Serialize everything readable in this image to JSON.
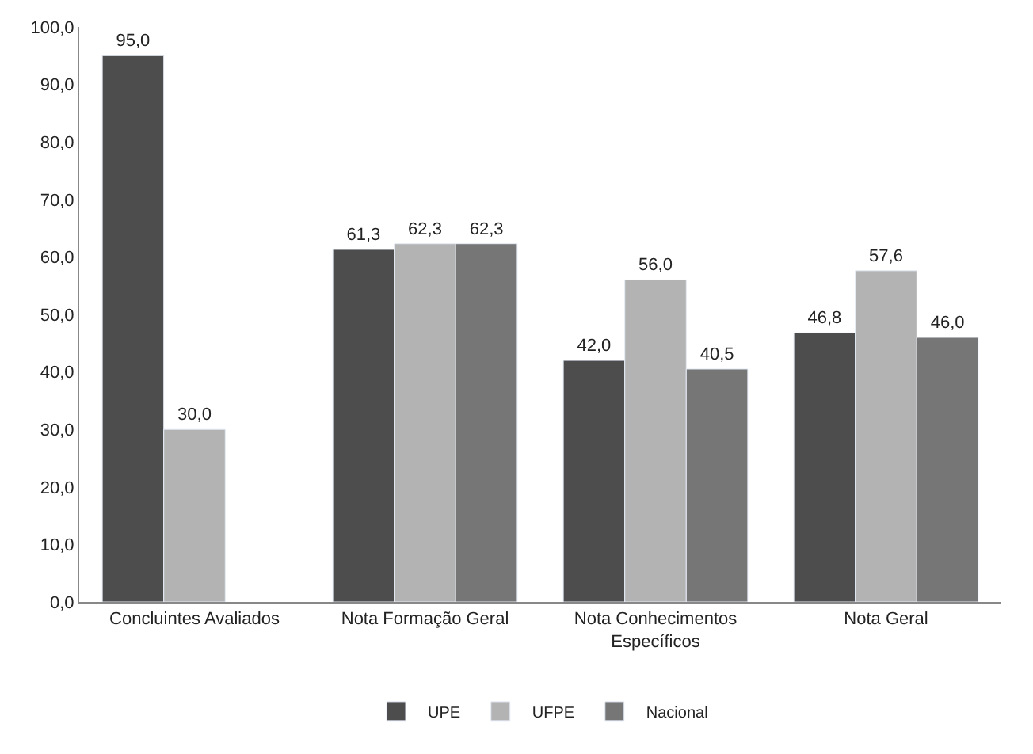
{
  "chart_data": {
    "type": "bar",
    "categories": [
      "Concluintes Avaliados",
      "Nota Formação Geral",
      "Nota Conhecimentos Específicos",
      "Nota Geral"
    ],
    "series": [
      {
        "name": "UPE",
        "color": "#4d4d4d",
        "values": [
          95.0,
          61.3,
          42.0,
          46.8
        ],
        "value_labels": [
          "95,0",
          "61,3",
          "42,0",
          "46,8"
        ]
      },
      {
        "name": "UFPE",
        "color": "#b3b3b3",
        "values": [
          30.0,
          62.3,
          56.0,
          57.6
        ],
        "value_labels": [
          "30,0",
          "62,3",
          "56,0",
          "57,6"
        ]
      },
      {
        "name": "Nacional",
        "color": "#767676",
        "values": [
          null,
          62.3,
          40.5,
          46.0
        ],
        "value_labels": [
          null,
          "62,3",
          "40,5",
          "46,0"
        ]
      }
    ],
    "ylim": [
      0,
      100
    ],
    "yticks": [
      {
        "value": 0,
        "label": "0,0"
      },
      {
        "value": 10,
        "label": "10,0"
      },
      {
        "value": 20,
        "label": "20,0"
      },
      {
        "value": 30,
        "label": "30,0"
      },
      {
        "value": 40,
        "label": "40,0"
      },
      {
        "value": 50,
        "label": "50,0"
      },
      {
        "value": 60,
        "label": "60,0"
      },
      {
        "value": 70,
        "label": "70,0"
      },
      {
        "value": 80,
        "label": "80,0"
      },
      {
        "value": 90,
        "label": "90,0"
      },
      {
        "value": 100,
        "label": "100,0"
      }
    ],
    "legend": "bottom"
  }
}
